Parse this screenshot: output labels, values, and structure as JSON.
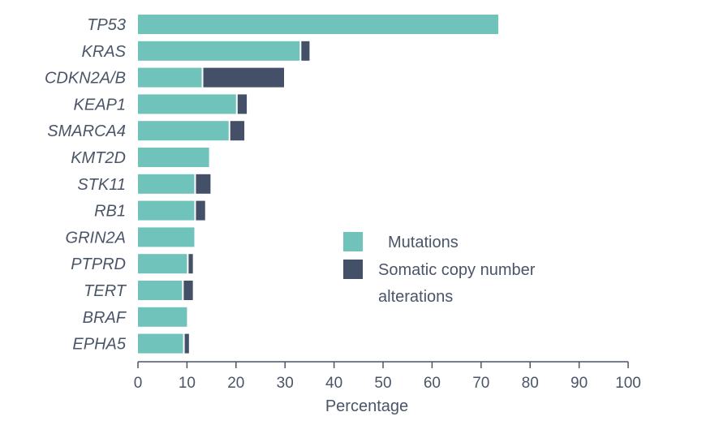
{
  "chart_data": {
    "type": "bar",
    "orientation": "horizontal",
    "stacked": true,
    "categories": [
      "TP53",
      "KRAS",
      "CDKN2A/B",
      "KEAP1",
      "SMARCA4",
      "KMT2D",
      "STK11",
      "RB1",
      "GRIN2A",
      "PTPRD",
      "TERT",
      "BRAF",
      "EPHA5"
    ],
    "series": [
      {
        "name": "Mutations",
        "color": "#6fc3ba",
        "values": [
          73.5,
          33,
          13,
          20,
          18.5,
          14.5,
          11.5,
          11.5,
          11.5,
          10,
          9,
          10,
          9.2
        ]
      },
      {
        "name": "Somatic copy number alterations",
        "color": "#445068",
        "values": [
          0,
          2,
          16.8,
          2.2,
          3.2,
          0,
          3.3,
          2.2,
          0,
          1.2,
          2.2,
          0,
          1.2
        ]
      }
    ],
    "xlabel": "Percentage",
    "ylabel": "",
    "xlim": [
      0,
      100
    ],
    "xticks": [
      0,
      10,
      20,
      30,
      40,
      50,
      60,
      70,
      80,
      90,
      100
    ],
    "grid": false,
    "legend_position": "center-right",
    "legend_lines": [
      [
        "Mutations"
      ],
      [
        "Somatic copy number",
        "alterations"
      ]
    ]
  }
}
